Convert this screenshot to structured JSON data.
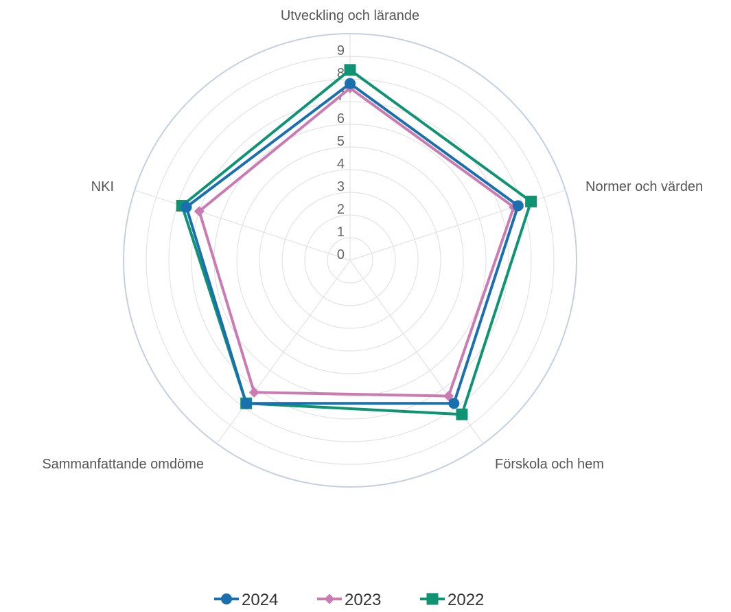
{
  "chart_data": {
    "type": "radar",
    "axes": [
      "Utveckling och lärande",
      "Normer och värden",
      "Förskola och hem",
      "Sammanfattande omdöme",
      "NKI"
    ],
    "r_ticks": [
      "0",
      "1",
      "2",
      "3",
      "4",
      "5",
      "6",
      "7",
      "8",
      "9"
    ],
    "rlim": [
      0,
      10
    ],
    "grid": true,
    "legend_position": "bottom",
    "series": [
      {
        "name": "2024",
        "values": [
          7.8,
          7.8,
          7.8,
          7.8,
          7.6
        ],
        "color": "#1a6faf",
        "marker": "circle"
      },
      {
        "name": "2023",
        "values": [
          7.6,
          7.6,
          7.4,
          7.2,
          7.0
        ],
        "color": "#c97bb2",
        "marker": "diamond"
      },
      {
        "name": "2022",
        "values": [
          8.4,
          8.4,
          8.4,
          7.8,
          7.8
        ],
        "color": "#0f9473",
        "marker": "square"
      }
    ]
  }
}
